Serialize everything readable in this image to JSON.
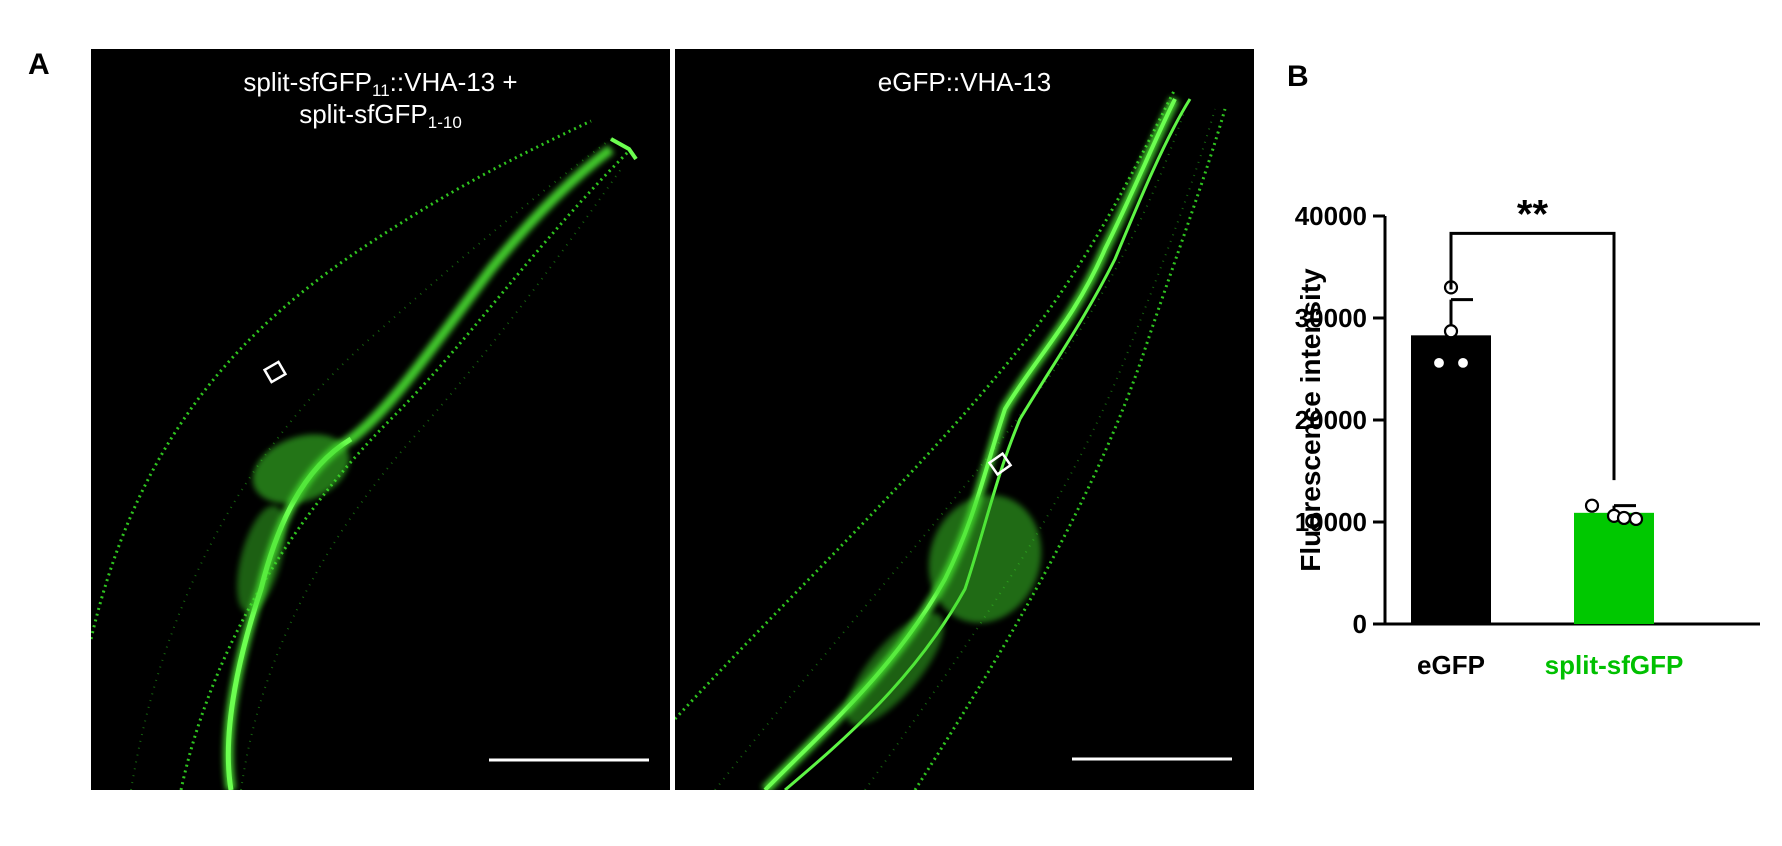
{
  "panels": {
    "a_letter": "A",
    "b_letter": "B"
  },
  "micrographs": [
    {
      "title_line1_main": "split-sfGFP",
      "title_line1_sub": "11",
      "title_line1_tail": "::VHA-13 +",
      "title_line2_main": "split-sfGFP",
      "title_line2_sub": "1-10"
    },
    {
      "title": "eGFP::VHA-13"
    }
  ],
  "colors": {
    "egfp_bar": "#000000",
    "split_bar": "#00c800",
    "fluorescence": "#3fd62a",
    "background": "#000000"
  },
  "chart_data": {
    "type": "bar",
    "categories": [
      "eGFP",
      "split-sfGFP"
    ],
    "category_colors": [
      "#000000",
      "#00c800"
    ],
    "values": [
      28300,
      10900
    ],
    "errors": [
      3500,
      700
    ],
    "points": [
      [
        33000,
        28700,
        25600,
        25600
      ],
      [
        11600,
        10600,
        10400,
        10300
      ]
    ],
    "ylabel": "Fluorescence intensity",
    "ylim": [
      0,
      40000
    ],
    "yticks": [
      0,
      10000,
      20000,
      30000,
      40000
    ],
    "ytick_labels": [
      "0",
      "10000",
      "20000",
      "30000",
      "40000"
    ],
    "significance": "**"
  }
}
